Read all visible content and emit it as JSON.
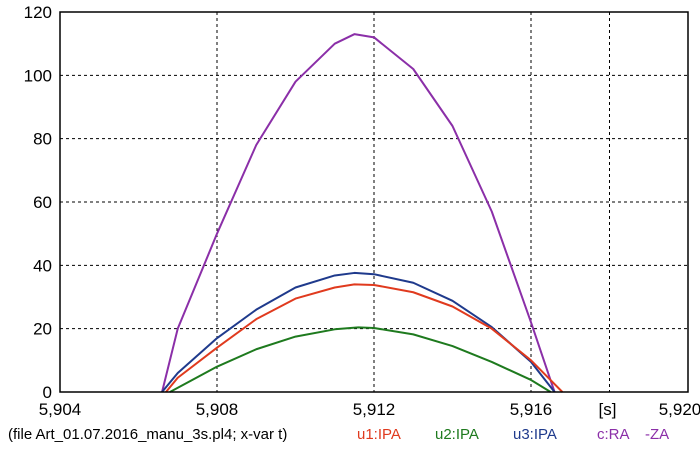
{
  "chart_data": {
    "type": "line",
    "xlim": [
      5.904,
      5.92
    ],
    "ylim": [
      0,
      120
    ],
    "x_ticks": [
      "5,904",
      "5,908",
      "5,912",
      "5,916",
      "",
      "5,920"
    ],
    "x_tick_values": [
      5.904,
      5.908,
      5.912,
      5.916,
      5.918,
      5.92
    ],
    "y_ticks": [
      "0",
      "20",
      "40",
      "60",
      "80",
      "100",
      "120"
    ],
    "y_tick_values": [
      0,
      20,
      40,
      60,
      80,
      100,
      120
    ],
    "x_unit": "[s]",
    "grid": true,
    "series": [
      {
        "name": "c:RA -ZA",
        "color": "#8B2FA8",
        "x": [
          5.9066,
          5.907,
          5.908,
          5.909,
          5.91,
          5.911,
          5.9115,
          5.912,
          5.913,
          5.914,
          5.915,
          5.916,
          5.9166
        ],
        "y": [
          0,
          20,
          50,
          78,
          98,
          110,
          113,
          112,
          102,
          84,
          57,
          22,
          0
        ]
      },
      {
        "name": "u3:IPA",
        "color": "#1F3A8C",
        "x": [
          5.9066,
          5.907,
          5.908,
          5.909,
          5.91,
          5.911,
          5.9115,
          5.912,
          5.913,
          5.914,
          5.915,
          5.916,
          5.9166
        ],
        "y": [
          0,
          6,
          17,
          26,
          33,
          36.8,
          37.6,
          37.2,
          34.5,
          28.8,
          20.5,
          9.5,
          0
        ]
      },
      {
        "name": "u1:IPA",
        "color": "#E03A1E",
        "x": [
          5.9067,
          5.907,
          5.908,
          5.909,
          5.91,
          5.911,
          5.9115,
          5.912,
          5.913,
          5.914,
          5.915,
          5.916,
          5.9168
        ],
        "y": [
          0,
          4.5,
          14,
          23,
          29.5,
          33,
          34,
          33.8,
          31.5,
          27,
          20,
          10,
          0
        ]
      },
      {
        "name": "u2:IPA",
        "color": "#1E7A1E",
        "x": [
          5.9068,
          5.908,
          5.909,
          5.91,
          5.911,
          5.9116,
          5.912,
          5.913,
          5.914,
          5.915,
          5.916,
          5.9165
        ],
        "y": [
          0,
          8,
          13.5,
          17.5,
          19.8,
          20.4,
          20.2,
          18.2,
          14.5,
          9.5,
          3.8,
          0
        ]
      }
    ]
  },
  "footer": {
    "file_label": "(file Art_01.07.2016_manu_3s.pl4; x-var t)",
    "legend": [
      {
        "label": "u1:IPA",
        "color": "#E03A1E"
      },
      {
        "label": "u2:IPA",
        "color": "#1E7A1E"
      },
      {
        "label": "u3:IPA",
        "color": "#1F3A8C"
      },
      {
        "label": "c:RA",
        "color": "#8B2FA8"
      },
      {
        "label": "-ZA",
        "color": "#8B2FA8"
      }
    ]
  }
}
